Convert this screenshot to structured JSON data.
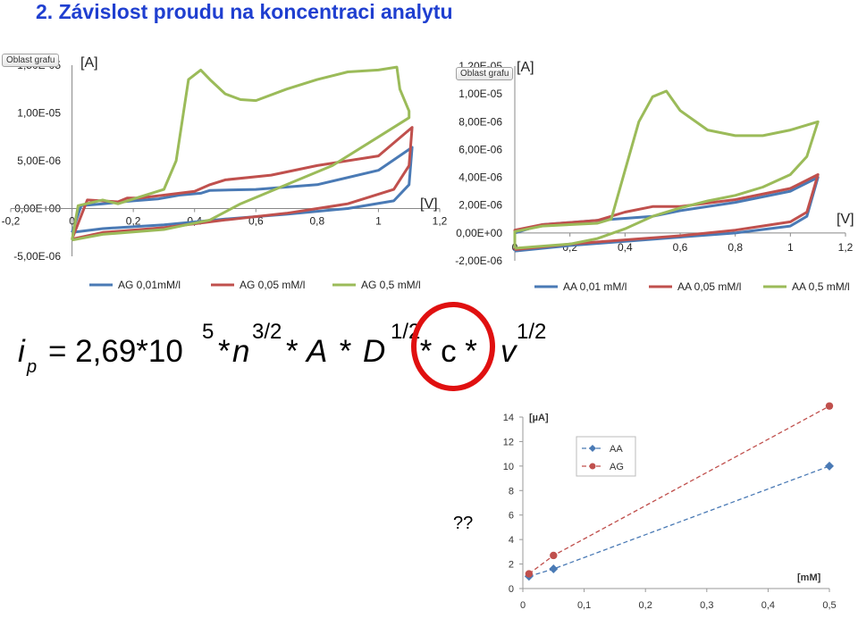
{
  "title": "2. Závislost proudu na koncentraci analytu",
  "formula": {
    "ip_i": "i",
    "ip_p": "p",
    "eq": "= 2,69*10",
    "exp5": "5",
    "star_n_star": "*",
    "n": "n",
    "exp_n": "3/2",
    "star_a": " *",
    "a": "A",
    "star_d": " * ",
    "d": "D",
    "exp_d": "1/2",
    "c_part": " * c * ",
    "v": "v",
    "exp_v": "1/2"
  },
  "question_marks": "??",
  "highlight_color": "#e01010",
  "chart_data": [
    {
      "type": "line",
      "tag": "Oblast grafu",
      "xlabel": "[V]",
      "ylabel": "[A]",
      "xlim": [
        -0.2,
        1.2
      ],
      "ylim": [
        -5e-06,
        1.5e-05
      ],
      "x_ticks": [
        "-0,2",
        "0",
        "0,2",
        "0,4",
        "0,6",
        "0,8",
        "1",
        "1,2"
      ],
      "y_ticks": [
        "-5,00E-06",
        "0,00E+00",
        "5,00E-06",
        "1,00E-05",
        "1,50E-05"
      ],
      "y_tick_values": [
        -5e-06,
        0,
        5e-06,
        1e-05,
        1.5e-05
      ],
      "series": [
        {
          "name": "AG 0,01mM/l",
          "color": "#4a7ab5",
          "points": [
            [
              0,
              -2.5e-06
            ],
            [
              0.1,
              -2.1e-06
            ],
            [
              0.3,
              -1.7e-06
            ],
            [
              0.5,
              -1.1e-06
            ],
            [
              0.7,
              -6e-07
            ],
            [
              0.9,
              0
            ],
            [
              1.05,
              8e-07
            ],
            [
              1.1,
              2.5e-06
            ],
            [
              1.11,
              6.4e-06
            ],
            [
              1.0,
              4e-06
            ],
            [
              0.8,
              2.5e-06
            ],
            [
              0.6,
              2e-06
            ],
            [
              0.45,
              1.9e-06
            ],
            [
              0.42,
              1.6e-06
            ],
            [
              0.35,
              1.4e-06
            ],
            [
              0.28,
              1e-06
            ],
            [
              0.2,
              8e-07
            ],
            [
              0.1,
              5e-07
            ],
            [
              0.03,
              3e-07
            ],
            [
              0,
              -2.5e-06
            ]
          ]
        },
        {
          "name": "AG 0,05 mM/l",
          "color": "#c0504d",
          "points": [
            [
              0,
              -3.2e-06
            ],
            [
              0.1,
              -2.5e-06
            ],
            [
              0.3,
              -2e-06
            ],
            [
              0.5,
              -1.2e-06
            ],
            [
              0.7,
              -5e-07
            ],
            [
              0.9,
              5e-07
            ],
            [
              1.05,
              2e-06
            ],
            [
              1.1,
              4.5e-06
            ],
            [
              1.11,
              8.5e-06
            ],
            [
              1.0,
              5.5e-06
            ],
            [
              0.8,
              4.5e-06
            ],
            [
              0.65,
              3.5e-06
            ],
            [
              0.5,
              3e-06
            ],
            [
              0.45,
              2.5e-06
            ],
            [
              0.4,
              1.8e-06
            ],
            [
              0.3,
              1.4e-06
            ],
            [
              0.22,
              1.1e-06
            ],
            [
              0.18,
              1.1e-06
            ],
            [
              0.15,
              7e-07
            ],
            [
              0.05,
              9e-07
            ],
            [
              0,
              -3.2e-06
            ]
          ]
        },
        {
          "name": "AG 0,5 mM/l",
          "color": "#9bbb59",
          "points": [
            [
              0,
              -3.3e-06
            ],
            [
              0.1,
              -2.7e-06
            ],
            [
              0.3,
              -2.2e-06
            ],
            [
              0.45,
              -1.2e-06
            ],
            [
              0.55,
              5e-07
            ],
            [
              0.7,
              2.5e-06
            ],
            [
              0.85,
              4.5e-06
            ],
            [
              1.0,
              7.5e-06
            ],
            [
              1.1,
              9.5e-06
            ],
            [
              1.1,
              1.02e-05
            ],
            [
              1.07,
              1.25e-05
            ],
            [
              1.06,
              1.48e-05
            ],
            [
              1.0,
              1.45e-05
            ],
            [
              0.9,
              1.43e-05
            ],
            [
              0.8,
              1.35e-05
            ],
            [
              0.7,
              1.25e-05
            ],
            [
              0.6,
              1.13e-05
            ],
            [
              0.55,
              1.14e-05
            ],
            [
              0.5,
              1.2e-05
            ],
            [
              0.45,
              1.35e-05
            ],
            [
              0.42,
              1.45e-05
            ],
            [
              0.38,
              1.35e-05
            ],
            [
              0.34,
              5e-06
            ],
            [
              0.3,
              2e-06
            ],
            [
              0.2,
              1e-06
            ],
            [
              0.15,
              5e-07
            ],
            [
              0.1,
              9e-07
            ],
            [
              0.02,
              3e-07
            ],
            [
              0,
              -3.3e-06
            ]
          ]
        }
      ]
    },
    {
      "type": "line",
      "tag": "Oblast grafu",
      "xlabel": "[V]",
      "ylabel": "[A]",
      "xlim": [
        0,
        1.2
      ],
      "ylim": [
        -2e-06,
        1.2e-05
      ],
      "x_ticks": [
        "0",
        "0,2",
        "0,4",
        "0,6",
        "0,8",
        "1",
        "1,2"
      ],
      "y_ticks": [
        "-2,00E-06",
        "0,00E+00",
        "2,00E-06",
        "4,00E-06",
        "6,00E-06",
        "8,00E-06",
        "1,00E-05",
        "1,20E-05"
      ],
      "y_tick_values": [
        -2e-06,
        0,
        2e-06,
        4e-06,
        6e-06,
        8e-06,
        1e-05,
        1.2e-05
      ],
      "series": [
        {
          "name": "AA 0,01 mM/l",
          "color": "#4a7ab5",
          "points": [
            [
              0,
              -1.3e-06
            ],
            [
              0.2,
              -9e-07
            ],
            [
              0.4,
              -6e-07
            ],
            [
              0.6,
              -3e-07
            ],
            [
              0.8,
              0
            ],
            [
              1.0,
              5e-07
            ],
            [
              1.06,
              1.2e-06
            ],
            [
              1.1,
              4e-06
            ],
            [
              1.0,
              3e-06
            ],
            [
              0.8,
              2.2e-06
            ],
            [
              0.6,
              1.6e-06
            ],
            [
              0.5,
              1.2e-06
            ],
            [
              0.3,
              9e-07
            ],
            [
              0.1,
              6e-07
            ],
            [
              0,
              0
            ],
            [
              0,
              -1.3e-06
            ]
          ]
        },
        {
          "name": "AA 0,05 mM/l",
          "color": "#c0504d",
          "points": [
            [
              0,
              -1.2e-06
            ],
            [
              0.2,
              -8e-07
            ],
            [
              0.4,
              -5e-07
            ],
            [
              0.6,
              -2e-07
            ],
            [
              0.8,
              2e-07
            ],
            [
              1.0,
              8e-07
            ],
            [
              1.06,
              1.5e-06
            ],
            [
              1.1,
              4.2e-06
            ],
            [
              1.0,
              3.2e-06
            ],
            [
              0.8,
              2.4e-06
            ],
            [
              0.6,
              1.9e-06
            ],
            [
              0.5,
              1.9e-06
            ],
            [
              0.4,
              1.5e-06
            ],
            [
              0.3,
              9e-07
            ],
            [
              0.1,
              6e-07
            ],
            [
              0,
              2e-07
            ],
            [
              0,
              -1.2e-06
            ]
          ]
        },
        {
          "name": "AA 0,5 mM/l",
          "color": "#9bbb59",
          "points": [
            [
              0,
              -1.1e-06
            ],
            [
              0.2,
              -8e-07
            ],
            [
              0.3,
              -4e-07
            ],
            [
              0.4,
              3e-07
            ],
            [
              0.5,
              1.2e-06
            ],
            [
              0.6,
              1.8e-06
            ],
            [
              0.7,
              2.3e-06
            ],
            [
              0.8,
              2.7e-06
            ],
            [
              0.9,
              3.3e-06
            ],
            [
              1.0,
              4.2e-06
            ],
            [
              1.06,
              5.5e-06
            ],
            [
              1.1,
              8e-06
            ],
            [
              1.0,
              7.4e-06
            ],
            [
              0.9,
              7e-06
            ],
            [
              0.8,
              7e-06
            ],
            [
              0.7,
              7.4e-06
            ],
            [
              0.6,
              8.8e-06
            ],
            [
              0.55,
              1.02e-05
            ],
            [
              0.5,
              9.8e-06
            ],
            [
              0.45,
              8e-06
            ],
            [
              0.4,
              4.5e-06
            ],
            [
              0.35,
              1e-06
            ],
            [
              0.3,
              7e-07
            ],
            [
              0.2,
              6e-07
            ],
            [
              0.1,
              5e-07
            ],
            [
              0,
              1e-07
            ],
            [
              0,
              -1.1e-06
            ]
          ]
        }
      ]
    },
    {
      "type": "scatter",
      "xlabel": "[mM]",
      "ylabel": "[µA]",
      "xlim": [
        0,
        0.5
      ],
      "ylim": [
        0,
        14
      ],
      "x_ticks": [
        "0",
        "0,1",
        "0,2",
        "0,3",
        "0,4",
        "0,5"
      ],
      "x_tick_values": [
        0,
        0.1,
        0.2,
        0.3,
        0.4,
        0.5
      ],
      "y_ticks": [
        "0",
        "2",
        "4",
        "6",
        "8",
        "10",
        "12",
        "14"
      ],
      "y_tick_values": [
        0,
        2,
        4,
        6,
        8,
        10,
        12,
        14
      ],
      "legend": "top-left",
      "series": [
        {
          "name": "AA",
          "color": "#4a7ab5",
          "marker": "diamond",
          "x": [
            0.01,
            0.05,
            0.5
          ],
          "y": [
            1.0,
            1.6,
            10.0
          ]
        },
        {
          "name": "AG",
          "color": "#c0504d",
          "marker": "circle",
          "x": [
            0.01,
            0.05,
            0.5
          ],
          "y": [
            1.2,
            2.7,
            14.9
          ]
        }
      ]
    }
  ]
}
